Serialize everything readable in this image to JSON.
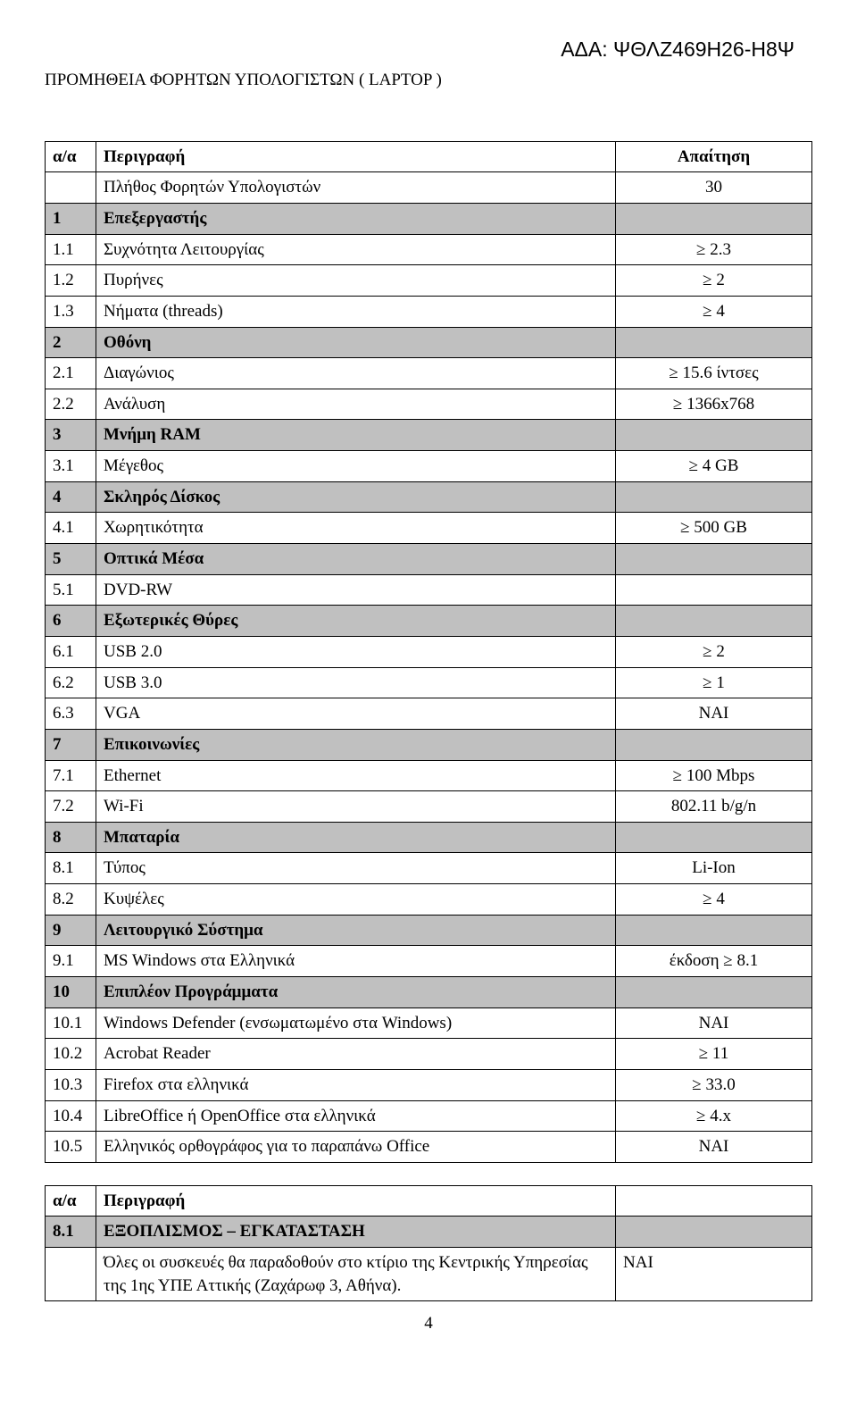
{
  "ada": "ΑΔΑ: ΨΘΛΖ469Η26-Η8Ψ",
  "subject": "ΠΡΟΜΗΘΕΙΑ  ΦΟΡΗΤΩΝ ΥΠΟΛΟΓΙΣΤΩΝ ( LAPTOP )",
  "t1": {
    "h_num": "α/α",
    "h_desc": "Περιγραφή",
    "h_req": "Απαίτηση",
    "r_qty_desc": "Πλήθος Φορητών Υπολογιστών",
    "r_qty_req": "30",
    "s1": "1",
    "s1_t": "Επεξεργαστής",
    "r11n": "1.1",
    "r11d": "Συχνότητα Λειτουργίας",
    "r11r": "≥ 2.3",
    "r12n": "1.2",
    "r12d": "Πυρήνες",
    "r12r": "≥ 2",
    "r13n": "1.3",
    "r13d": "Νήματα (threads)",
    "r13r": "≥ 4",
    "s2": "2",
    "s2_t": "Οθόνη",
    "r21n": "2.1",
    "r21d": "Διαγώνιος",
    "r21r": "≥ 15.6 ίντσες",
    "r22n": "2.2",
    "r22d": "Ανάλυση",
    "r22r": "≥ 1366x768",
    "s3": "3",
    "s3_t": "Μνήμη RAM",
    "r31n": "3.1",
    "r31d": "Μέγεθος",
    "r31r": "≥ 4 GB",
    "s4": "4",
    "s4_t": "Σκληρός Δίσκος",
    "r41n": "4.1",
    "r41d": "Χωρητικότητα",
    "r41r": "≥ 500 GB",
    "s5": "5",
    "s5_t": "Οπτικά Μέσα",
    "r51n": "5.1",
    "r51d": "DVD-RW",
    "r51r": "",
    "s6": "6",
    "s6_t": "Εξωτερικές Θύρες",
    "r61n": "6.1",
    "r61d": "USB 2.0",
    "r61r": "≥ 2",
    "r62n": "6.2",
    "r62d": "USB 3.0",
    "r62r": "≥ 1",
    "r63n": "6.3",
    "r63d": "VGA",
    "r63r": "ΝΑΙ",
    "s7": "7",
    "s7_t": "Επικοινωνίες",
    "r71n": "7.1",
    "r71d": "Ethernet",
    "r71r": "≥ 100 Mbps",
    "r72n": "7.2",
    "r72d": "Wi-Fi",
    "r72r": "802.11 b/g/n",
    "s8": "8",
    "s8_t": "Μπαταρία",
    "r81n": "8.1",
    "r81d": "Τύπος",
    "r81r": "Li-Ion",
    "r82n": "8.2",
    "r82d": "Κυψέλες",
    "r82r": "≥ 4",
    "s9": "9",
    "s9_t": "Λειτουργικό Σύστημα",
    "r91n": "9.1",
    "r91d": "MS Windows στα Ελληνικά",
    "r91r": "έκδοση ≥ 8.1",
    "s10": "10",
    "s10_t": "Επιπλέον Προγράμματα",
    "r101n": "10.1",
    "r101d": "Windows Defender (ενσωματωμένο στα Windows)",
    "r101r": "ΝΑΙ",
    "r102n": "10.2",
    "r102d": "Acrobat Reader",
    "r102r": "≥ 11",
    "r103n": "10.3",
    "r103d": "Firefox στα ελληνικά",
    "r103r": "≥ 33.0",
    "r104n": "10.4",
    "r104d": "LibreOffice ή OpenOffice στα ελληνικά",
    "r104r": "≥ 4.x",
    "r105n": "10.5",
    "r105d": "Ελληνικός ορθογράφος για το παραπάνω Office",
    "r105r": "ΝΑΙ"
  },
  "t2": {
    "h_num": "α/α",
    "h_desc": "Περιγραφή",
    "s81": "8.1",
    "s81_t": "ΕΞΟΠΛΙΣΜΟΣ – ΕΓΚΑΤΑΣΤΑΣΗ",
    "r_d": "Όλες οι συσκευές θα παραδοθούν στο κτίριο της Κεντρικής Υπηρεσίας της 1ης ΥΠΕ Αττικής (Ζαχάρωφ 3, Αθήνα).",
    "r_r": "ΝΑΙ"
  },
  "page": "4"
}
